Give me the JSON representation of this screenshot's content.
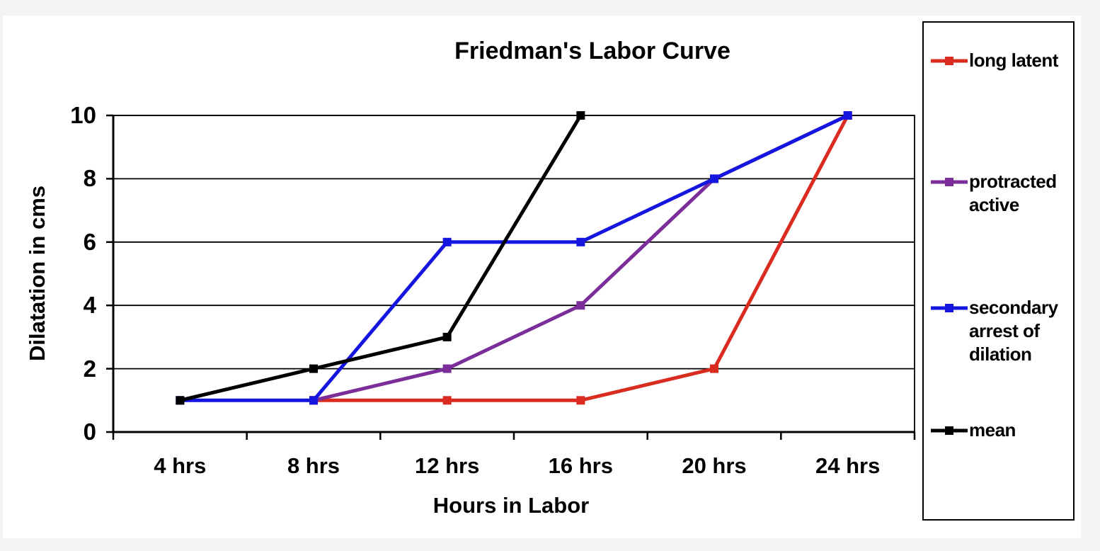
{
  "chart_data": {
    "type": "line",
    "title": "Friedman's Labor Curve",
    "xlabel": "Hours in Labor",
    "ylabel": "Dilatation in cms",
    "categories": [
      "4 hrs",
      "8 hrs",
      "12 hrs",
      "16 hrs",
      "20 hrs",
      "24 hrs"
    ],
    "series": [
      {
        "name": "long latent",
        "color": "#d92b1f",
        "values": [
          null,
          1,
          1,
          1,
          2,
          10
        ]
      },
      {
        "name": "protracted active",
        "color": "#7b2e99",
        "values": [
          null,
          1,
          2,
          4,
          8,
          10
        ]
      },
      {
        "name": "secondary arrest of dilation",
        "color": "#1515e0",
        "values": [
          1,
          1,
          6,
          6,
          8,
          10
        ]
      },
      {
        "name": "mean",
        "color": "#000000",
        "values": [
          1,
          2,
          3,
          10,
          null,
          null
        ]
      }
    ],
    "ylim": [
      0,
      10
    ],
    "yticks": [
      0,
      2,
      4,
      6,
      8,
      10
    ],
    "grid": "horizontal-major",
    "legend_position": "right",
    "marker": "square",
    "plot_background": "#ffffff",
    "outer_background": "#f2f3f3",
    "axis_color": "#000000"
  }
}
